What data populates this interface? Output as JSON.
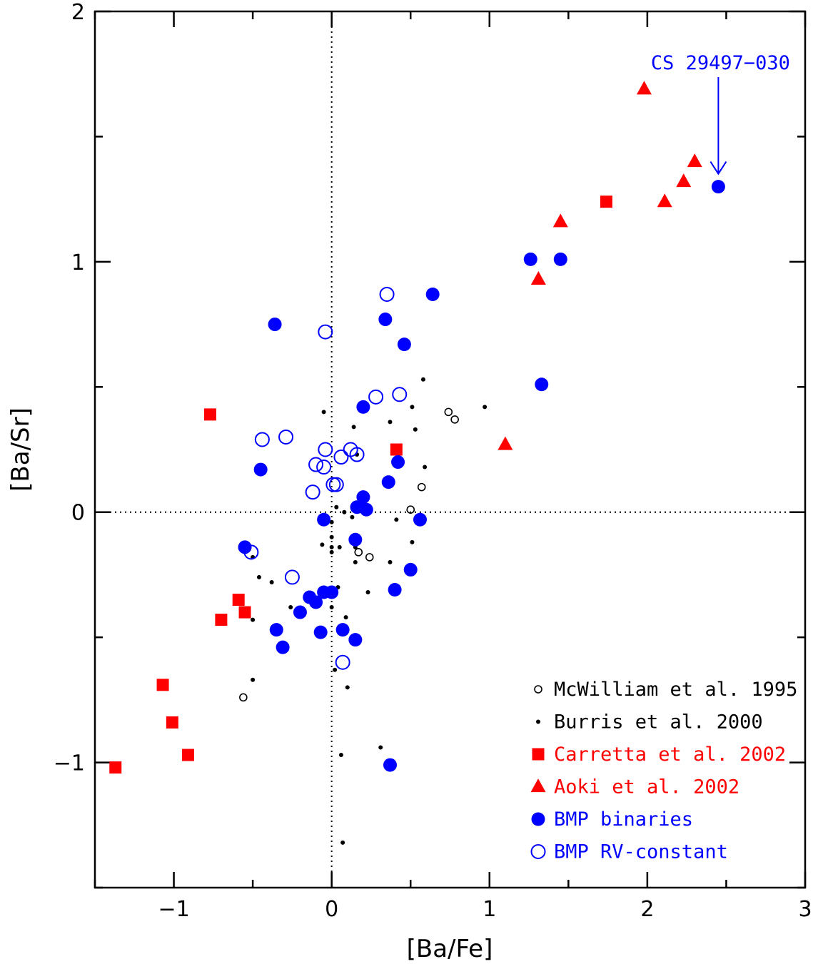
{
  "chart_data": {
    "type": "scatter",
    "xlabel": "[Ba/Fe]",
    "ylabel": "[Ba/Sr]",
    "xlim": [
      -1.5,
      3.0
    ],
    "ylim": [
      -1.5,
      2.0
    ],
    "x_tick_labels": [
      "−1",
      "0",
      "1",
      "2",
      "3"
    ],
    "y_tick_labels": [
      "−1",
      "0",
      "1",
      "2"
    ],
    "reference_lines": {
      "x": 0,
      "y": 0,
      "style": "dotted"
    },
    "grid": false,
    "legend_position": "bottom-right",
    "annotation": {
      "text": "CS 29497−030",
      "x": 2.45,
      "y": 1.3,
      "color": "#0000ff"
    },
    "series": [
      {
        "name": "McWilliam et al. 1995",
        "marker": "open-circle-small",
        "color": "#000000",
        "points": [
          [
            0.74,
            0.4
          ],
          [
            0.78,
            0.37
          ],
          [
            0.57,
            0.1
          ],
          [
            0.5,
            0.01
          ],
          [
            0.17,
            -0.16
          ],
          [
            0.24,
            -0.18
          ],
          [
            -0.56,
            -0.74
          ]
        ]
      },
      {
        "name": "Burris et al. 2000",
        "marker": "dot",
        "color": "#000000",
        "points": [
          [
            0.58,
            0.53
          ],
          [
            0.51,
            0.42
          ],
          [
            0.97,
            0.42
          ],
          [
            -0.05,
            0.4
          ],
          [
            0.37,
            0.36
          ],
          [
            0.14,
            0.34
          ],
          [
            0.53,
            0.33
          ],
          [
            0.41,
            0.25
          ],
          [
            0.16,
            0.23
          ],
          [
            0.59,
            0.18
          ],
          [
            0.03,
            0.02
          ],
          [
            0.08,
            0.0
          ],
          [
            0.0,
            -0.04
          ],
          [
            0.13,
            -0.02
          ],
          [
            0.41,
            -0.03
          ],
          [
            0.0,
            -0.1
          ],
          [
            -0.06,
            -0.13
          ],
          [
            0.0,
            -0.14
          ],
          [
            0.0,
            -0.16
          ],
          [
            0.05,
            -0.14
          ],
          [
            0.15,
            -0.14
          ],
          [
            0.51,
            -0.12
          ],
          [
            0.15,
            -0.2
          ],
          [
            0.37,
            -0.2
          ],
          [
            -0.5,
            -0.18
          ],
          [
            -0.46,
            -0.26
          ],
          [
            -0.38,
            -0.28
          ],
          [
            0.04,
            -0.3
          ],
          [
            0.23,
            -0.32
          ],
          [
            -0.26,
            -0.38
          ],
          [
            0.0,
            -0.38
          ],
          [
            0.09,
            -0.42
          ],
          [
            -0.5,
            -0.43
          ],
          [
            0.02,
            -0.63
          ],
          [
            -0.5,
            -0.67
          ],
          [
            0.1,
            -0.7
          ],
          [
            0.31,
            -0.94
          ],
          [
            0.06,
            -0.97
          ],
          [
            -0.91,
            -0.97
          ],
          [
            0.07,
            -1.32
          ]
        ]
      },
      {
        "name": "Carretta et al. 2002",
        "marker": "filled-square",
        "color": "#ff0000",
        "points": [
          [
            1.74,
            1.24
          ],
          [
            -0.77,
            0.39
          ],
          [
            0.41,
            0.25
          ],
          [
            -0.59,
            -0.35
          ],
          [
            -0.55,
            -0.4
          ],
          [
            -0.7,
            -0.43
          ],
          [
            -1.07,
            -0.69
          ],
          [
            -1.01,
            -0.84
          ],
          [
            -0.91,
            -0.97
          ],
          [
            -1.37,
            -1.02
          ]
        ]
      },
      {
        "name": "Aoki et al. 2002",
        "marker": "filled-triangle",
        "color": "#ff0000",
        "points": [
          [
            1.98,
            1.69
          ],
          [
            2.3,
            1.4
          ],
          [
            2.23,
            1.32
          ],
          [
            2.11,
            1.24
          ],
          [
            1.45,
            1.16
          ],
          [
            1.31,
            0.93
          ],
          [
            1.1,
            0.27
          ]
        ]
      },
      {
        "name": "BMP binaries",
        "marker": "filled-circle",
        "color": "#0000ff",
        "points": [
          [
            2.45,
            1.3
          ],
          [
            1.26,
            1.01
          ],
          [
            1.45,
            1.01
          ],
          [
            0.64,
            0.87
          ],
          [
            0.34,
            0.77
          ],
          [
            -0.36,
            0.75
          ],
          [
            0.46,
            0.67
          ],
          [
            1.33,
            0.51
          ],
          [
            0.2,
            0.42
          ],
          [
            0.42,
            0.2
          ],
          [
            -0.45,
            0.17
          ],
          [
            0.36,
            0.12
          ],
          [
            0.2,
            0.06
          ],
          [
            0.16,
            0.02
          ],
          [
            0.22,
            0.01
          ],
          [
            -0.05,
            -0.03
          ],
          [
            0.56,
            -0.03
          ],
          [
            0.15,
            -0.11
          ],
          [
            -0.55,
            -0.14
          ],
          [
            0.5,
            -0.23
          ],
          [
            0.4,
            -0.31
          ],
          [
            -0.05,
            -0.32
          ],
          [
            0.0,
            -0.32
          ],
          [
            -0.14,
            -0.34
          ],
          [
            -0.1,
            -0.36
          ],
          [
            -0.2,
            -0.4
          ],
          [
            -0.35,
            -0.47
          ],
          [
            0.07,
            -0.47
          ],
          [
            -0.07,
            -0.48
          ],
          [
            0.15,
            -0.51
          ],
          [
            -0.31,
            -0.54
          ],
          [
            0.37,
            -1.01
          ]
        ]
      },
      {
        "name": "BMP RV-constant",
        "marker": "open-circle",
        "color": "#0000ff",
        "points": [
          [
            0.35,
            0.87
          ],
          [
            -0.04,
            0.72
          ],
          [
            0.28,
            0.46
          ],
          [
            0.43,
            0.47
          ],
          [
            -0.44,
            0.29
          ],
          [
            -0.29,
            0.3
          ],
          [
            -0.04,
            0.25
          ],
          [
            0.12,
            0.25
          ],
          [
            0.16,
            0.23
          ],
          [
            0.06,
            0.22
          ],
          [
            -0.1,
            0.19
          ],
          [
            -0.05,
            0.18
          ],
          [
            0.01,
            0.11
          ],
          [
            0.03,
            0.11
          ],
          [
            -0.12,
            0.08
          ],
          [
            -0.51,
            -0.16
          ],
          [
            -0.25,
            -0.26
          ],
          [
            0.07,
            -0.6
          ]
        ]
      }
    ]
  }
}
